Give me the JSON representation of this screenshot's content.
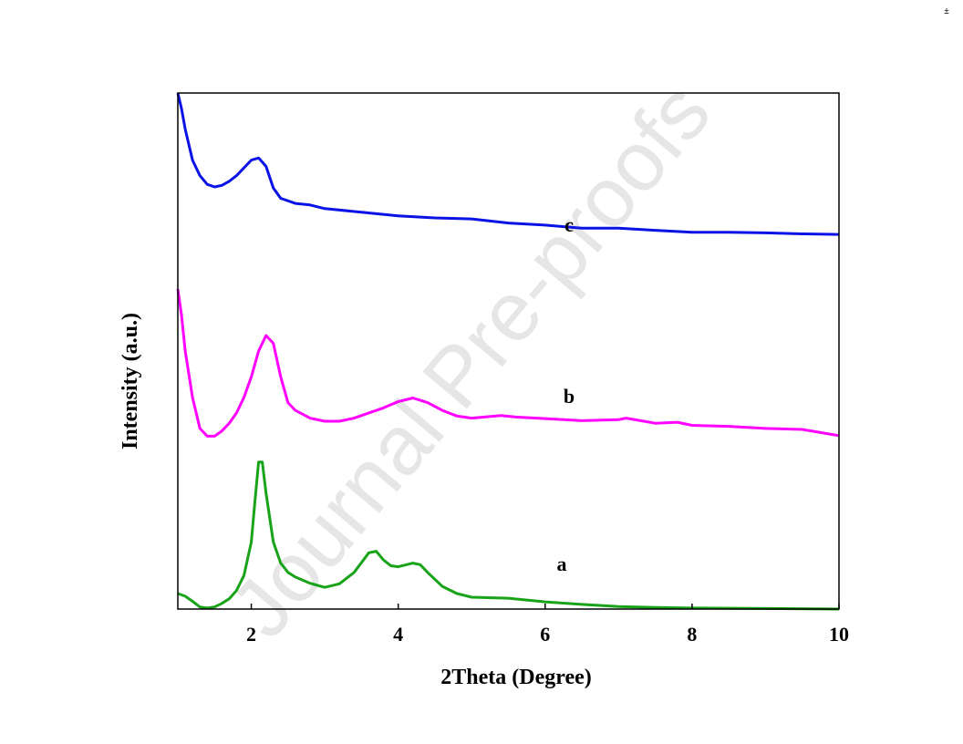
{
  "watermark": "Journal Pre-proofs",
  "corner_mark": "±",
  "chart_data": {
    "type": "line",
    "title": "",
    "xlabel": "2Theta (Degree)",
    "ylabel": "Intensity (a.u.)",
    "xlim": [
      1,
      10
    ],
    "ylim": [
      0,
      100
    ],
    "xticks": [
      2,
      4,
      6,
      8,
      10
    ],
    "yticks": [],
    "grid": false,
    "legend": "none",
    "series": [
      {
        "name": "a",
        "color": "#19a319",
        "points": [
          [
            1.0,
            3
          ],
          [
            1.1,
            2.5
          ],
          [
            1.2,
            1.5
          ],
          [
            1.3,
            0.4
          ],
          [
            1.4,
            0.2
          ],
          [
            1.5,
            0.4
          ],
          [
            1.6,
            1.1
          ],
          [
            1.7,
            2
          ],
          [
            1.8,
            3.6
          ],
          [
            1.9,
            6.5
          ],
          [
            2.0,
            13
          ],
          [
            2.05,
            21
          ],
          [
            2.1,
            28.5
          ],
          [
            2.15,
            28.5
          ],
          [
            2.2,
            22.5
          ],
          [
            2.3,
            13
          ],
          [
            2.4,
            8.9
          ],
          [
            2.5,
            7.1
          ],
          [
            2.6,
            6.2
          ],
          [
            2.7,
            5.6
          ],
          [
            2.8,
            5
          ],
          [
            2.9,
            4.6
          ],
          [
            3.0,
            4.2
          ],
          [
            3.2,
            4.9
          ],
          [
            3.4,
            7.1
          ],
          [
            3.6,
            10.9
          ],
          [
            3.7,
            11.2
          ],
          [
            3.8,
            9.5
          ],
          [
            3.9,
            8.4
          ],
          [
            4.0,
            8.2
          ],
          [
            4.2,
            8.9
          ],
          [
            4.3,
            8.6
          ],
          [
            4.4,
            7.1
          ],
          [
            4.6,
            4.4
          ],
          [
            4.8,
            3
          ],
          [
            5.0,
            2.3
          ],
          [
            5.5,
            2.1
          ],
          [
            6.0,
            1.4
          ],
          [
            6.5,
            0.9
          ],
          [
            7.0,
            0.5
          ],
          [
            7.5,
            0.3
          ],
          [
            8.0,
            0.2
          ],
          [
            9.0,
            0.1
          ],
          [
            10.0,
            0
          ]
        ]
      },
      {
        "name": "b",
        "color": "#ff00ff",
        "points": [
          [
            1.0,
            62
          ],
          [
            1.05,
            57
          ],
          [
            1.1,
            50
          ],
          [
            1.2,
            41
          ],
          [
            1.3,
            35
          ],
          [
            1.4,
            33.5
          ],
          [
            1.5,
            33.5
          ],
          [
            1.6,
            34.5
          ],
          [
            1.7,
            36
          ],
          [
            1.8,
            38
          ],
          [
            1.9,
            41
          ],
          [
            2.0,
            45
          ],
          [
            2.1,
            50
          ],
          [
            2.2,
            53
          ],
          [
            2.3,
            51.5
          ],
          [
            2.4,
            45
          ],
          [
            2.5,
            40
          ],
          [
            2.6,
            38.5
          ],
          [
            2.8,
            37
          ],
          [
            3.0,
            36.4
          ],
          [
            3.2,
            36.4
          ],
          [
            3.4,
            37
          ],
          [
            3.6,
            38
          ],
          [
            3.8,
            39
          ],
          [
            4.0,
            40.2
          ],
          [
            4.2,
            40.9
          ],
          [
            4.4,
            40
          ],
          [
            4.6,
            38.5
          ],
          [
            4.8,
            37.4
          ],
          [
            5.0,
            37
          ],
          [
            5.4,
            37.5
          ],
          [
            5.6,
            37.2
          ],
          [
            6.0,
            36.9
          ],
          [
            6.5,
            36.5
          ],
          [
            7.0,
            36.7
          ],
          [
            7.1,
            37
          ],
          [
            7.3,
            36.5
          ],
          [
            7.5,
            36
          ],
          [
            7.8,
            36.2
          ],
          [
            8.0,
            35.6
          ],
          [
            8.5,
            35.4
          ],
          [
            9.0,
            35
          ],
          [
            9.5,
            34.8
          ],
          [
            10.0,
            33.6
          ]
        ]
      },
      {
        "name": "c",
        "color": "#0a12e6",
        "points": [
          [
            1.0,
            100
          ],
          [
            1.05,
            97
          ],
          [
            1.1,
            93
          ],
          [
            1.2,
            87
          ],
          [
            1.3,
            84
          ],
          [
            1.4,
            82.3
          ],
          [
            1.5,
            81.8
          ],
          [
            1.6,
            82.1
          ],
          [
            1.7,
            82.9
          ],
          [
            1.8,
            84
          ],
          [
            1.9,
            85.5
          ],
          [
            2.0,
            87
          ],
          [
            2.1,
            87.4
          ],
          [
            2.2,
            85.8
          ],
          [
            2.3,
            81.6
          ],
          [
            2.4,
            79.6
          ],
          [
            2.6,
            78.6
          ],
          [
            2.8,
            78.3
          ],
          [
            3.0,
            77.6
          ],
          [
            3.5,
            76.9
          ],
          [
            4.0,
            76.2
          ],
          [
            4.5,
            75.8
          ],
          [
            5.0,
            75.6
          ],
          [
            5.5,
            74.8
          ],
          [
            6.0,
            74.4
          ],
          [
            6.5,
            73.8
          ],
          [
            7.0,
            73.8
          ],
          [
            7.5,
            73.4
          ],
          [
            8.0,
            73
          ],
          [
            8.5,
            73
          ],
          [
            9.0,
            72.9
          ],
          [
            9.5,
            72.7
          ],
          [
            10.0,
            72.6
          ]
        ]
      }
    ]
  }
}
